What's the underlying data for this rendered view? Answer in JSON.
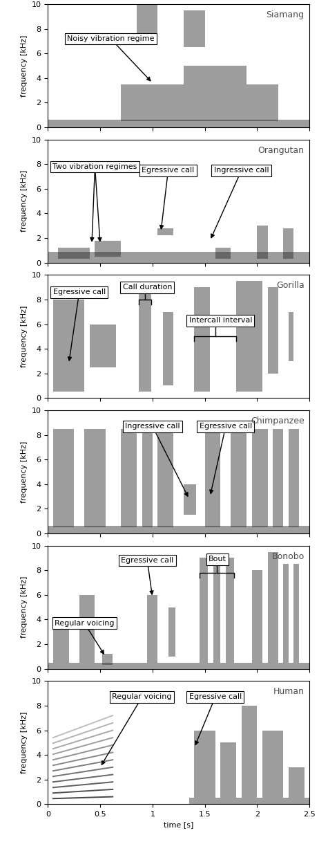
{
  "chart_data": [
    {
      "type": "spectrogram",
      "title": "Siamang",
      "y_label": "frequency [kHz]",
      "xlim": [
        0,
        2.5
      ],
      "xticks": [
        0,
        0.5,
        1,
        1.5,
        2,
        2.5
      ],
      "ylim": [
        0,
        10
      ],
      "yticks": [
        0,
        2,
        4,
        6,
        8,
        10
      ],
      "tick_labels": "y",
      "calls": [
        {
          "t": [
            0,
            2.5
          ],
          "f": [
            0,
            0.6
          ]
        },
        {
          "t": [
            0.7,
            1.35
          ],
          "f": [
            0.5,
            3.5
          ]
        },
        {
          "t": [
            1.35,
            2.2
          ],
          "f": [
            0.5,
            3.5
          ]
        },
        {
          "t": [
            1.3,
            1.9
          ],
          "f": [
            3.5,
            5
          ]
        },
        {
          "t": [
            0.85,
            1.05
          ],
          "f": [
            7,
            10
          ]
        },
        {
          "t": [
            1.3,
            1.5
          ],
          "f": [
            6.5,
            9.5
          ]
        }
      ],
      "annotations": [
        {
          "text": "Noisy vibration regime",
          "at": [
            0.6,
            7.2
          ],
          "points": [
            [
              1.0,
              3.6
            ]
          ]
        }
      ]
    },
    {
      "type": "spectrogram",
      "title": "Orangutan",
      "y_label": "frequency [kHz]",
      "xlim": [
        0,
        2.5
      ],
      "xticks": [
        0,
        0.5,
        1,
        1.5,
        2,
        2.5
      ],
      "ylim": [
        0,
        10
      ],
      "yticks": [
        0,
        2,
        4,
        6,
        8,
        10
      ],
      "tick_labels": "y",
      "calls": [
        {
          "t": [
            0,
            2.5
          ],
          "f": [
            0,
            0.9
          ]
        },
        {
          "t": [
            0.1,
            0.4
          ],
          "f": [
            0.3,
            1.2
          ]
        },
        {
          "t": [
            0.45,
            0.7
          ],
          "f": [
            0.5,
            1.8
          ]
        },
        {
          "t": [
            1.05,
            1.2
          ],
          "f": [
            2.2,
            2.8
          ]
        },
        {
          "t": [
            1.6,
            1.75
          ],
          "f": [
            0.3,
            1.2
          ]
        },
        {
          "t": [
            2.0,
            2.1
          ],
          "f": [
            0.3,
            3
          ]
        },
        {
          "t": [
            2.25,
            2.35
          ],
          "f": [
            0.3,
            2.8
          ]
        }
      ],
      "annotations": [
        {
          "text": "Two vibration regimes",
          "at": [
            0.45,
            7.8
          ],
          "points": [
            [
              0.42,
              1.5
            ],
            [
              0.5,
              1.5
            ]
          ]
        },
        {
          "text": "Egressive call",
          "at": [
            1.15,
            7.5
          ],
          "points": [
            [
              1.08,
              2.5
            ]
          ]
        },
        {
          "text": "Ingressive call",
          "at": [
            1.85,
            7.5
          ],
          "points": [
            [
              1.55,
              1.8
            ]
          ]
        }
      ]
    },
    {
      "type": "spectrogram",
      "title": "Gorilla",
      "y_label": "frequency [kHz]",
      "xlim": [
        0,
        2.5
      ],
      "xticks": [
        0,
        0.5,
        1,
        1.5,
        2,
        2.5
      ],
      "ylim": [
        0,
        10
      ],
      "yticks": [
        0,
        2,
        4,
        6,
        8,
        10
      ],
      "tick_labels": "y",
      "calls": [
        {
          "t": [
            0.05,
            0.35
          ],
          "f": [
            0.5,
            8
          ]
        },
        {
          "t": [
            0.4,
            0.65
          ],
          "f": [
            2.5,
            6
          ]
        },
        {
          "t": [
            0.87,
            0.99
          ],
          "f": [
            0.5,
            9
          ]
        },
        {
          "t": [
            1.1,
            1.2
          ],
          "f": [
            1,
            7
          ]
        },
        {
          "t": [
            1.4,
            1.55
          ],
          "f": [
            0.5,
            9
          ]
        },
        {
          "t": [
            1.8,
            2.05
          ],
          "f": [
            0.5,
            9.5
          ]
        },
        {
          "t": [
            2.1,
            2.2
          ],
          "f": [
            2,
            9
          ]
        },
        {
          "t": [
            2.3,
            2.35
          ],
          "f": [
            3,
            7
          ]
        }
      ],
      "annotations": [
        {
          "text": "Egressive call",
          "at": [
            0.3,
            8.6
          ],
          "points": [
            [
              0.2,
              2.8
            ]
          ]
        },
        {
          "text": "Call duration",
          "at": [
            0.95,
            9.0
          ],
          "span": [
            0.87,
            0.99
          ],
          "f": 8.0
        },
        {
          "text": "Intercall interval",
          "at": [
            1.65,
            6.3
          ],
          "span": [
            1.4,
            1.8
          ],
          "f": 5.0
        }
      ]
    },
    {
      "type": "spectrogram",
      "title": "Chimpanzee",
      "y_label": "frequency [kHz]",
      "xlim": [
        0,
        2.5
      ],
      "xticks": [
        0,
        0.5,
        1,
        1.5,
        2,
        2.5
      ],
      "ylim": [
        0,
        10
      ],
      "yticks": [
        0,
        2,
        4,
        6,
        8,
        10
      ],
      "tick_labels": "y",
      "calls": [
        {
          "t": [
            0,
            2.5
          ],
          "f": [
            0,
            0.6
          ]
        },
        {
          "t": [
            0.05,
            0.25
          ],
          "f": [
            0.5,
            8.5
          ]
        },
        {
          "t": [
            0.35,
            0.55
          ],
          "f": [
            0.5,
            8.5
          ]
        },
        {
          "t": [
            0.7,
            0.85
          ],
          "f": [
            0.5,
            8.5
          ]
        },
        {
          "t": [
            0.9,
            1.0
          ],
          "f": [
            0.5,
            8.5
          ]
        },
        {
          "t": [
            1.05,
            1.2
          ],
          "f": [
            0.5,
            8.5
          ]
        },
        {
          "t": [
            1.3,
            1.42
          ],
          "f": [
            1.5,
            4
          ]
        },
        {
          "t": [
            1.5,
            1.65
          ],
          "f": [
            0.5,
            8.5
          ]
        },
        {
          "t": [
            1.75,
            1.9
          ],
          "f": [
            0.5,
            8.5
          ]
        },
        {
          "t": [
            1.95,
            2.1
          ],
          "f": [
            0.5,
            8.5
          ]
        },
        {
          "t": [
            2.15,
            2.25
          ],
          "f": [
            0.5,
            8.5
          ]
        },
        {
          "t": [
            2.3,
            2.4
          ],
          "f": [
            0.5,
            8.5
          ]
        }
      ],
      "annotations": [
        {
          "text": "Ingressive call",
          "at": [
            1.0,
            8.7
          ],
          "points": [
            [
              1.35,
              2.8
            ]
          ]
        },
        {
          "text": "Egressive call",
          "at": [
            1.7,
            8.7
          ],
          "points": [
            [
              1.55,
              3.0
            ]
          ]
        }
      ]
    },
    {
      "type": "spectrogram",
      "title": "Bonobo",
      "y_label": "frequency [kHz]",
      "xlim": [
        0,
        2.5
      ],
      "xticks": [
        0,
        0.5,
        1,
        1.5,
        2,
        2.5
      ],
      "ylim": [
        0,
        10
      ],
      "yticks": [
        0,
        2,
        4,
        6,
        8,
        10
      ],
      "tick_labels": "y",
      "calls": [
        {
          "t": [
            0,
            2.5
          ],
          "f": [
            0,
            0.5
          ]
        },
        {
          "t": [
            0.05,
            0.2
          ],
          "f": [
            0.5,
            4
          ]
        },
        {
          "t": [
            0.3,
            0.45
          ],
          "f": [
            0.5,
            6
          ]
        },
        {
          "t": [
            0.52,
            0.62
          ],
          "f": [
            0.3,
            1.2
          ]
        },
        {
          "t": [
            0.95,
            1.05
          ],
          "f": [
            0.5,
            6
          ]
        },
        {
          "t": [
            1.15,
            1.22
          ],
          "f": [
            1,
            5
          ]
        },
        {
          "t": [
            1.45,
            1.53
          ],
          "f": [
            0.5,
            9
          ]
        },
        {
          "t": [
            1.58,
            1.65
          ],
          "f": [
            0.5,
            9
          ]
        },
        {
          "t": [
            1.7,
            1.78
          ],
          "f": [
            0.5,
            9
          ]
        },
        {
          "t": [
            1.95,
            2.05
          ],
          "f": [
            0.5,
            8
          ]
        },
        {
          "t": [
            2.1,
            2.2
          ],
          "f": [
            0.5,
            9.5
          ]
        },
        {
          "t": [
            2.25,
            2.3
          ],
          "f": [
            0.5,
            8.5
          ]
        },
        {
          "t": [
            2.35,
            2.4
          ],
          "f": [
            0.5,
            8.5
          ]
        }
      ],
      "annotations": [
        {
          "text": "Regular voicing",
          "at": [
            0.35,
            3.7
          ],
          "points": [
            [
              0.55,
              1.0
            ]
          ]
        },
        {
          "text": "Egressive call",
          "at": [
            0.95,
            8.8
          ],
          "points": [
            [
              1.0,
              5.8
            ]
          ]
        },
        {
          "text": "Bout",
          "at": [
            1.62,
            8.9
          ],
          "span": [
            1.45,
            1.78
          ],
          "f": 7.8
        }
      ]
    },
    {
      "type": "spectrogram",
      "title": "Human",
      "y_label": "frequency [kHz]",
      "x_label": "time [s]",
      "xlim": [
        0,
        2.5
      ],
      "xticks": [
        0,
        0.5,
        1,
        1.5,
        2,
        2.5
      ],
      "ylim": [
        0,
        10
      ],
      "yticks": [
        0,
        2,
        4,
        6,
        8,
        10
      ],
      "harmonics": {
        "t": [
          0.05,
          0.62
        ],
        "f0": [
          0.45,
          0.6
        ],
        "count": 12
      },
      "calls": [
        {
          "t": [
            1.35,
            2.5
          ],
          "f": [
            0,
            0.5
          ]
        },
        {
          "t": [
            1.4,
            1.6
          ],
          "f": [
            0.5,
            6
          ]
        },
        {
          "t": [
            1.65,
            1.8
          ],
          "f": [
            0.5,
            5
          ]
        },
        {
          "t": [
            1.85,
            2.0
          ],
          "f": [
            0.5,
            8
          ]
        },
        {
          "t": [
            2.05,
            2.25
          ],
          "f": [
            0.5,
            6
          ]
        },
        {
          "t": [
            2.3,
            2.45
          ],
          "f": [
            0.5,
            3
          ]
        }
      ],
      "annotations": [
        {
          "text": "Regular voicing",
          "at": [
            0.9,
            8.7
          ],
          "points": [
            [
              0.5,
              3.0
            ]
          ]
        },
        {
          "text": "Egressive call",
          "at": [
            1.6,
            8.7
          ],
          "points": [
            [
              1.4,
              4.6
            ]
          ]
        }
      ]
    }
  ]
}
